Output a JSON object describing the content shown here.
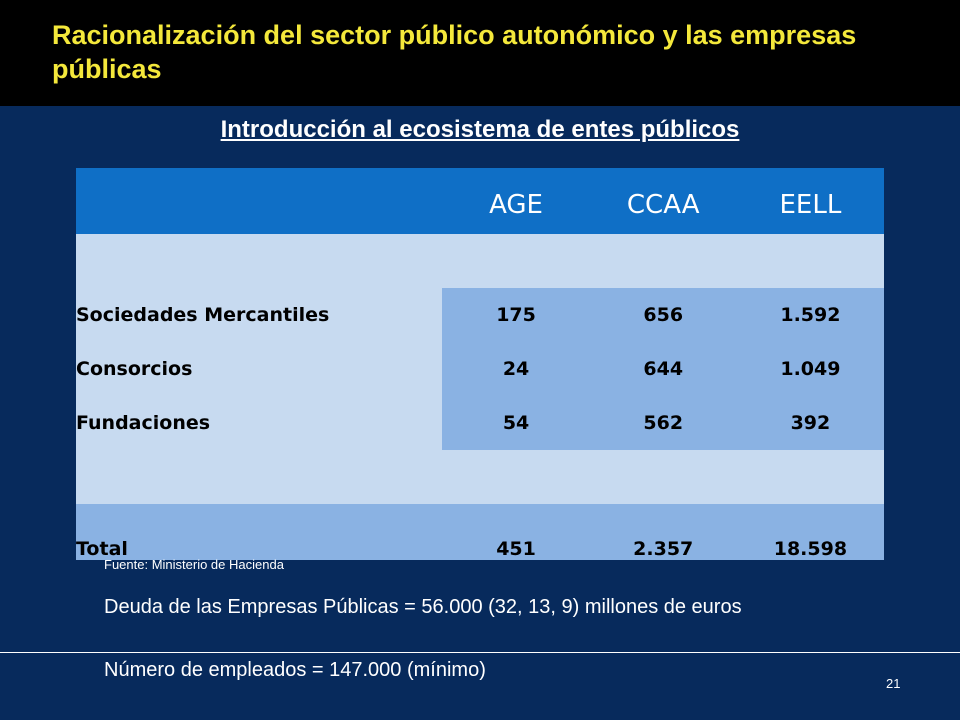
{
  "slide": {
    "title": "Racionalización del sector público autonómico y las empresas públicas",
    "subtitle": "Introducción al ecosistema de entes públicos",
    "page_number": "21"
  },
  "table": {
    "columns": [
      "",
      "AGE",
      "CCAA",
      "EELL"
    ],
    "rows": [
      {
        "label": "Sociedades Mercantiles",
        "values": [
          "175",
          "656",
          "1.592"
        ]
      },
      {
        "label": "Consorcios",
        "values": [
          "24",
          "644",
          "1.049"
        ]
      },
      {
        "label": "Fundaciones",
        "values": [
          "54",
          "562",
          "392"
        ]
      }
    ],
    "total": {
      "label": "Total",
      "values": [
        "451",
        "2.357",
        "18.598"
      ]
    }
  },
  "notes": {
    "source": "Fuente:  Ministerio de Hacienda",
    "debt": "Deuda de las Empresas Públicas  =  56.000 (32, 13, 9) millones de euros",
    "employees": "Número de empleados = 147.000 (mínimo)"
  },
  "colors": {
    "background": "#072a5c",
    "title_bar": "#000000",
    "title_text": "#f4e83b",
    "header": "#0f6fc6",
    "light_row": "#c7daf0",
    "mid_cell": "#8ab2e3"
  }
}
